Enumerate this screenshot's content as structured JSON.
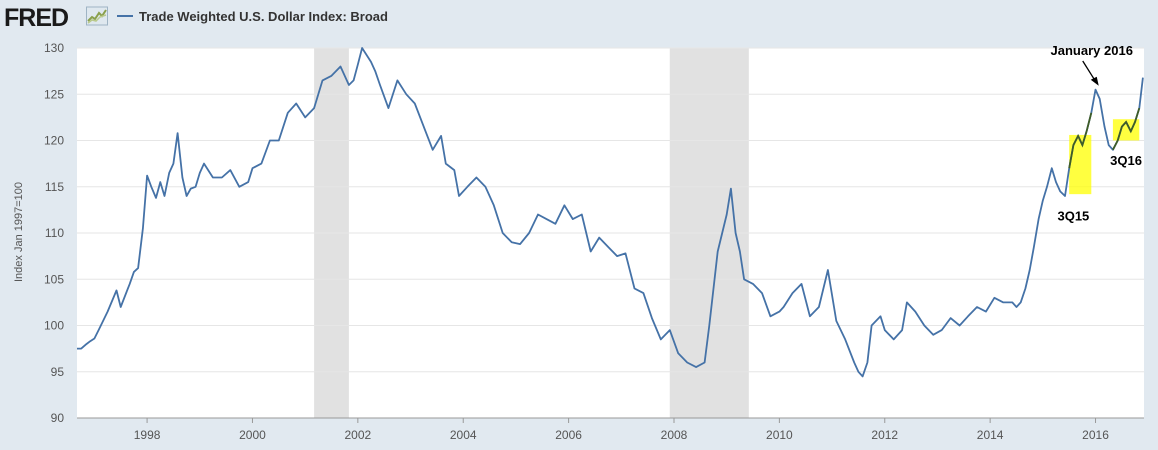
{
  "header": {
    "logo": "FRED",
    "logo_icon": "fred-line-graph-icon"
  },
  "colors": {
    "series": "#4572a7",
    "recession": "#e1e1e1",
    "highlight": "#ffff00",
    "highlight_series": "#3f5d27",
    "page_background": "#e1e9f0",
    "plot_background": "#ffffff"
  },
  "chart_data": {
    "type": "line",
    "title": "",
    "xlabel": "",
    "ylabel": "Index Jan 1997=100",
    "xlim": [
      1996.67,
      2016.92
    ],
    "ylim": [
      90,
      130
    ],
    "x_ticks": [
      "1998",
      "2000",
      "2002",
      "2004",
      "2006",
      "2008",
      "2010",
      "2012",
      "2014",
      "2016"
    ],
    "y_ticks": [
      "90",
      "95",
      "100",
      "105",
      "110",
      "115",
      "120",
      "125",
      "130"
    ],
    "grid": "horizontal",
    "legend": "top-left",
    "recessions": [
      [
        2001.17,
        2001.83
      ],
      [
        2007.92,
        2009.42
      ]
    ],
    "series": [
      {
        "name": "Trade Weighted U.S. Dollar Index: Broad",
        "x": [
          1996.67,
          1996.75,
          1996.83,
          1996.92,
          1997.0,
          1997.08,
          1997.25,
          1997.42,
          1997.5,
          1997.67,
          1997.75,
          1997.83,
          1997.92,
          1998.0,
          1998.08,
          1998.17,
          1998.25,
          1998.33,
          1998.42,
          1998.5,
          1998.58,
          1998.67,
          1998.75,
          1998.83,
          1998.92,
          1999.0,
          1999.08,
          1999.25,
          1999.42,
          1999.58,
          1999.75,
          1999.92,
          2000.0,
          2000.17,
          2000.33,
          2000.5,
          2000.67,
          2000.83,
          2001.0,
          2001.17,
          2001.33,
          2001.5,
          2001.67,
          2001.83,
          2001.92,
          2002.0,
          2002.08,
          2002.25,
          2002.33,
          2002.42,
          2002.58,
          2002.75,
          2002.92,
          2003.08,
          2003.25,
          2003.42,
          2003.58,
          2003.67,
          2003.83,
          2003.92,
          2004.08,
          2004.25,
          2004.42,
          2004.58,
          2004.75,
          2004.92,
          2005.08,
          2005.25,
          2005.42,
          2005.58,
          2005.75,
          2005.92,
          2006.08,
          2006.25,
          2006.42,
          2006.58,
          2006.75,
          2006.92,
          2007.08,
          2007.25,
          2007.42,
          2007.58,
          2007.75,
          2007.92,
          2008.08,
          2008.25,
          2008.42,
          2008.58,
          2008.67,
          2008.83,
          2009.0,
          2009.08,
          2009.17,
          2009.25,
          2009.33,
          2009.5,
          2009.67,
          2009.83,
          2010.0,
          2010.08,
          2010.25,
          2010.42,
          2010.58,
          2010.75,
          2010.92,
          2011.08,
          2011.25,
          2011.42,
          2011.5,
          2011.58,
          2011.67,
          2011.75,
          2011.92,
          2012.0,
          2012.17,
          2012.33,
          2012.42,
          2012.58,
          2012.75,
          2012.92,
          2013.08,
          2013.25,
          2013.42,
          2013.58,
          2013.75,
          2013.92,
          2014.08,
          2014.25,
          2014.42,
          2014.5,
          2014.58,
          2014.67,
          2014.75,
          2014.83,
          2014.92,
          2015.0,
          2015.08,
          2015.17,
          2015.25,
          2015.33,
          2015.42,
          2015.5,
          2015.58,
          2015.67,
          2015.75,
          2015.83,
          2015.92,
          2016.0,
          2016.08,
          2016.17,
          2016.25,
          2016.33,
          2016.42,
          2016.5,
          2016.58,
          2016.67,
          2016.75,
          2016.83,
          2016.9
        ],
        "values": [
          97.5,
          97.5,
          97.9,
          98.3,
          98.6,
          99.5,
          101.5,
          103.8,
          102.0,
          104.5,
          105.8,
          106.2,
          110.5,
          116.2,
          115.0,
          113.8,
          115.5,
          114.0,
          116.5,
          117.5,
          120.8,
          116.0,
          114.0,
          114.8,
          115.0,
          116.5,
          117.5,
          116.0,
          116.0,
          116.8,
          115.0,
          115.5,
          117.0,
          117.5,
          120.0,
          120.0,
          123.0,
          124.0,
          122.5,
          123.5,
          126.5,
          127.0,
          128.0,
          126.0,
          126.5,
          128.2,
          130.0,
          128.5,
          127.5,
          126.0,
          123.5,
          126.5,
          125.0,
          124.0,
          121.5,
          119.0,
          120.5,
          117.5,
          116.8,
          114.0,
          115.0,
          116.0,
          115.0,
          113.0,
          110.0,
          109.0,
          108.8,
          110.0,
          112.0,
          111.5,
          111.0,
          113.0,
          111.5,
          112.0,
          108.0,
          109.5,
          108.5,
          107.5,
          107.8,
          104.0,
          103.5,
          100.8,
          98.5,
          99.5,
          97.0,
          96.0,
          95.5,
          96.0,
          100.0,
          108.0,
          112.0,
          114.8,
          110.0,
          108.0,
          105.0,
          104.5,
          103.5,
          101.0,
          101.5,
          102.0,
          103.5,
          104.5,
          101.0,
          102.0,
          106.0,
          100.5,
          98.5,
          96.0,
          95.0,
          94.5,
          96.0,
          100.0,
          101.0,
          99.5,
          98.5,
          99.5,
          102.5,
          101.5,
          100.0,
          99.0,
          99.5,
          100.8,
          100.0,
          101.0,
          102.0,
          101.5,
          103.0,
          102.5,
          102.5,
          102.0,
          102.5,
          104.0,
          106.0,
          108.5,
          111.5,
          113.5,
          115.0,
          117.0,
          115.5,
          114.5,
          114.0,
          117.0,
          119.5,
          120.5,
          119.5,
          121.0,
          123.0,
          125.5,
          124.5,
          121.5,
          119.5,
          119.0,
          120.0,
          121.5,
          122.0,
          121.0,
          122.0,
          123.5,
          126.8
        ]
      }
    ],
    "annotations": [
      {
        "text": "January 2016",
        "x": 2016.08,
        "y": 125.6
      },
      {
        "text": "3Q15",
        "x": 2015.58,
        "y": 113.5
      },
      {
        "text": "3Q16",
        "x": 2016.58,
        "y": 119.5
      }
    ],
    "highlights": [
      {
        "label": "3Q15",
        "x": [
          2015.5,
          2015.92
        ],
        "y": [
          114.2,
          120.6
        ]
      },
      {
        "label": "3Q16",
        "x": [
          2016.33,
          2016.83
        ],
        "y": [
          120.0,
          122.3
        ]
      }
    ]
  }
}
